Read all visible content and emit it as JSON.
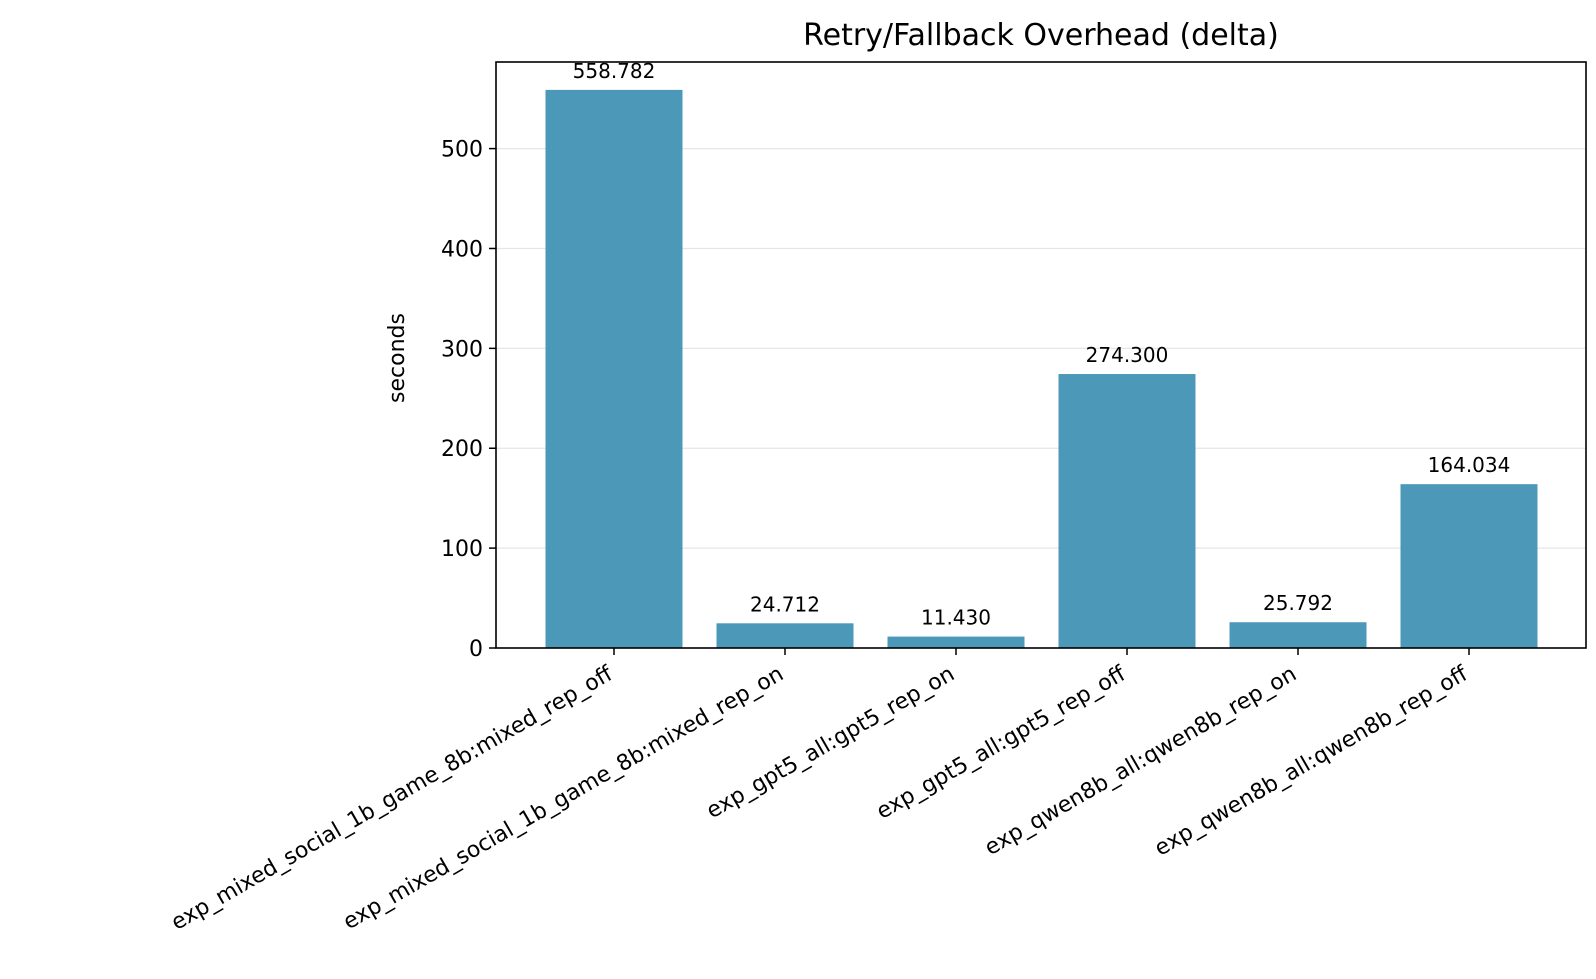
{
  "chart_data": {
    "type": "bar",
    "title": "Retry/Fallback Overhead (delta)",
    "xlabel": "",
    "ylabel": "seconds",
    "categories": [
      "exp_mixed_social_1b_game_8b:mixed_rep_off",
      "exp_mixed_social_1b_game_8b:mixed_rep_on",
      "exp_gpt5_all:gpt5_rep_on",
      "exp_gpt5_all:gpt5_rep_off",
      "exp_qwen8b_all:qwen8b_rep_on",
      "exp_qwen8b_all:qwen8b_rep_off"
    ],
    "values": [
      558.782,
      24.712,
      11.43,
      274.3,
      25.792,
      164.034
    ],
    "value_labels": [
      "558.782",
      "24.712",
      "11.430",
      "274.300",
      "25.792",
      "164.034"
    ],
    "ylim": [
      0,
      586.7
    ],
    "yticks": [
      0,
      100,
      200,
      300,
      400,
      500
    ],
    "grid": "y",
    "bar_color": "#4c98b8"
  }
}
